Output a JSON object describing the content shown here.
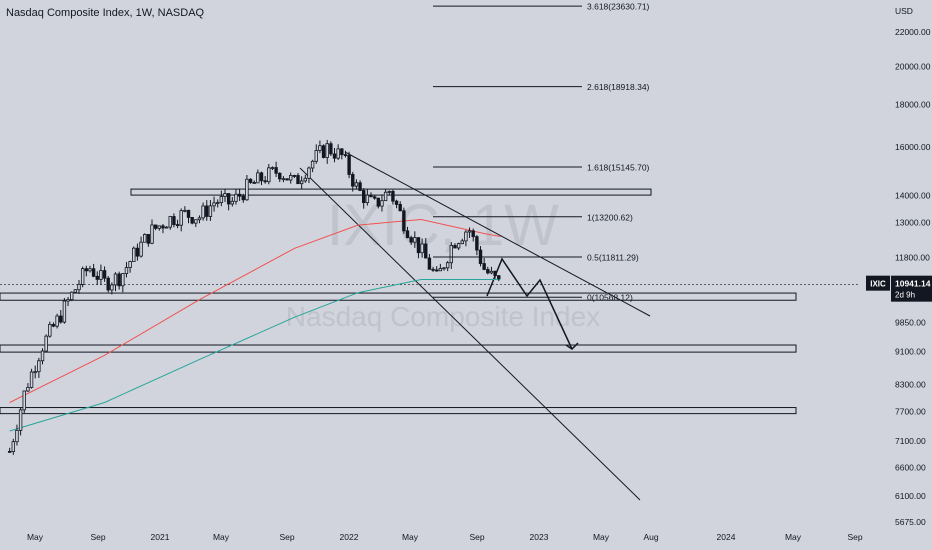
{
  "header": {
    "title": "Nasdaq Composite Index, 1W, NASDAQ"
  },
  "watermark": {
    "symbol": "IXIC, 1W",
    "name": "Nasdaq Composite Index"
  },
  "price_axis": {
    "currency": "USD",
    "ticks": [
      "22000.00",
      "20000.00",
      "18000.00",
      "16000.00",
      "14000.00",
      "13000.00",
      "11800.00",
      "10941.14",
      "9850.00",
      "9100.00",
      "8300.00",
      "7700.00",
      "7100.00",
      "6600.00",
      "6100.00",
      "5675.00"
    ],
    "tick_values": [
      22000,
      20000,
      18000,
      16000,
      14000,
      13000,
      11800,
      10941.14,
      9850,
      9100,
      8300,
      7700,
      7100,
      6600,
      6100,
      5675
    ]
  },
  "last_price": {
    "symbol": "IXIC",
    "value": "10941.14",
    "countdown": "2d 9h"
  },
  "time_axis": {
    "labels": [
      "May",
      "Sep",
      "2021",
      "May",
      "Sep",
      "2022",
      "May",
      "Sep",
      "2023",
      "May",
      "Aug",
      "2024",
      "May",
      "Sep"
    ]
  },
  "fib_levels": [
    {
      "label": "3.618(23630.71)",
      "ratio": 3.618,
      "price": 23630.71
    },
    {
      "label": "2.618(18918.34)",
      "ratio": 2.618,
      "price": 18918.34
    },
    {
      "label": "1.618(15145.70)",
      "ratio": 1.618,
      "price": 15145.7
    },
    {
      "label": "1(13200.62)",
      "ratio": 1,
      "price": 13200.62
    },
    {
      "label": "0.5(11811.29)",
      "ratio": 0.5,
      "price": 11811.29
    },
    {
      "label": "0(10568.12)",
      "ratio": 0,
      "price": 10568.12
    }
  ],
  "zones": [
    {
      "name": "resistance-zone-top",
      "low": 14050,
      "high": 14250
    },
    {
      "name": "support-zone-current",
      "low": 10480,
      "high": 10690
    },
    {
      "name": "support-zone-mid",
      "low": 9080,
      "high": 9260
    },
    {
      "name": "support-zone-low",
      "low": 7660,
      "high": 7790
    }
  ],
  "colors": {
    "background": "#d1d4dc",
    "candle": "#131722",
    "ma_red": "#ef5350",
    "ma_green": "#26a69a",
    "zone_fill": "#d1d4dc",
    "line": "#131722"
  },
  "chart_data": {
    "type": "candlestick",
    "title": "Nasdaq Composite Index, 1W, NASDAQ",
    "scale": "log",
    "ylim": [
      5675,
      24000
    ],
    "x_range": [
      "2020-03",
      "2024-10"
    ],
    "grid": false,
    "series": [
      {
        "name": "price",
        "x": [
          "2020-03",
          "2020-04",
          "2020-05",
          "2020-06",
          "2020-07",
          "2020-08",
          "2020-09",
          "2020-10",
          "2020-11",
          "2020-12",
          "2021-01",
          "2021-02",
          "2021-03",
          "2021-04",
          "2021-05",
          "2021-06",
          "2021-07",
          "2021-08",
          "2021-09",
          "2021-10",
          "2021-11",
          "2021-12",
          "2022-01",
          "2022-02",
          "2022-03",
          "2022-04",
          "2022-05",
          "2022-06",
          "2022-07",
          "2022-08",
          "2022-09",
          "2022-10"
        ],
        "values": [
          6900,
          8200,
          9200,
          9900,
          10700,
          11500,
          11000,
          11200,
          12000,
          12700,
          13100,
          13300,
          13200,
          13800,
          13700,
          14300,
          14700,
          15000,
          14500,
          15300,
          16000,
          15600,
          14200,
          13600,
          14200,
          12900,
          12000,
          11100,
          12300,
          12800,
          11400,
          10940
        ]
      },
      {
        "name": "ma_red",
        "x": [
          "2020-03",
          "2020-09",
          "2021-03",
          "2021-09",
          "2022-01",
          "2022-05",
          "2022-09",
          "2022-10"
        ],
        "values": [
          7900,
          9000,
          10500,
          12100,
          12900,
          13100,
          12600,
          12500
        ]
      },
      {
        "name": "ma_green",
        "x": [
          "2020-03",
          "2020-09",
          "2021-03",
          "2021-09",
          "2022-01",
          "2022-05",
          "2022-09",
          "2022-10"
        ],
        "values": [
          7300,
          7900,
          8900,
          10000,
          10700,
          11100,
          11100,
          11100
        ]
      }
    ]
  }
}
